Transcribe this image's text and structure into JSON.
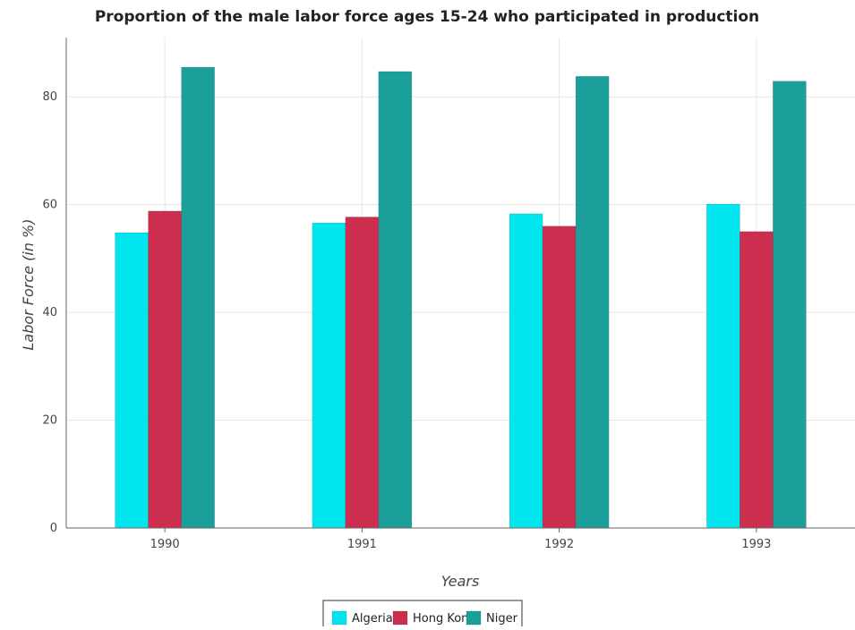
{
  "chart_data": {
    "type": "bar",
    "title": "Proportion of the male labor force ages 15-24 who participated in production",
    "xlabel": "Years",
    "ylabel": "Labor Force (in %)",
    "categories": [
      "1990",
      "1991",
      "1992",
      "1993"
    ],
    "series": [
      {
        "name": "Algeria",
        "color": "#00e5ee",
        "values": [
          54.8,
          56.6,
          58.3,
          60.1
        ]
      },
      {
        "name": "Hong Kong",
        "color": "#cd2e50",
        "values": [
          58.8,
          57.7,
          56.0,
          55.0
        ]
      },
      {
        "name": "Niger",
        "color": "#1a9f9a",
        "values": [
          85.5,
          84.7,
          83.8,
          82.9
        ]
      }
    ],
    "yticks": [
      0,
      20,
      40,
      60,
      80
    ],
    "ylim": [
      0,
      91
    ],
    "grid": true,
    "legend_position": "bottom-center"
  }
}
